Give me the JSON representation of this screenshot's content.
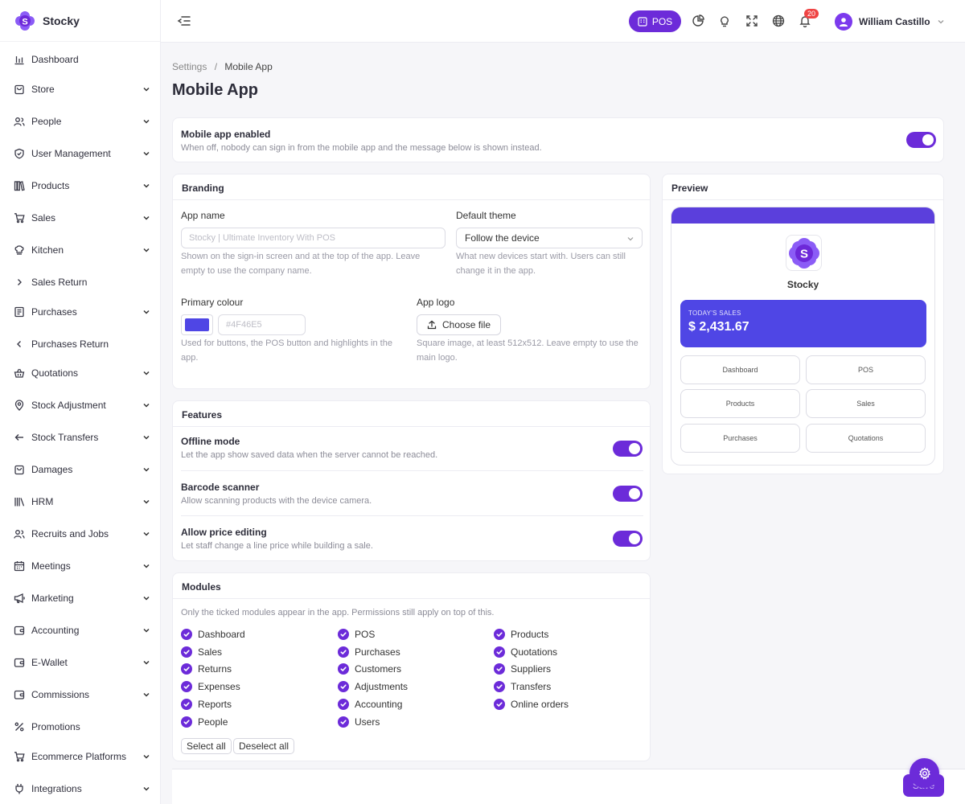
{
  "brand": {
    "name": "Stocky",
    "logo_letter": "S"
  },
  "sidebar": {
    "items": [
      {
        "label": "Dashboard",
        "icon": "bar-chart-icon",
        "chevron": ""
      },
      {
        "label": "Store",
        "icon": "bag-icon",
        "chevron": "down"
      },
      {
        "label": "People",
        "icon": "users-icon",
        "chevron": "down"
      },
      {
        "label": "User Management",
        "icon": "shield-icon",
        "chevron": "down"
      },
      {
        "label": "Products",
        "icon": "books-icon",
        "chevron": "down"
      },
      {
        "label": "Sales",
        "icon": "cart-icon",
        "chevron": "down"
      },
      {
        "label": "Kitchen",
        "icon": "chef-hat-icon",
        "chevron": "down"
      },
      {
        "label": "Sales Return",
        "icon": "chevron-right-icon",
        "chevron": ""
      },
      {
        "label": "Purchases",
        "icon": "receipt-icon",
        "chevron": "down"
      },
      {
        "label": "Purchases Return",
        "icon": "chevron-left-icon",
        "chevron": ""
      },
      {
        "label": "Quotations",
        "icon": "basket-icon",
        "chevron": "down"
      },
      {
        "label": "Stock Adjustment",
        "icon": "map-pin-icon",
        "chevron": "down"
      },
      {
        "label": "Stock Transfers",
        "icon": "arrow-left-icon",
        "chevron": "down"
      },
      {
        "label": "Damages",
        "icon": "bag-icon",
        "chevron": "down"
      },
      {
        "label": "HRM",
        "icon": "library-icon",
        "chevron": "down"
      },
      {
        "label": "Recruits and Jobs",
        "icon": "users-icon",
        "chevron": "down"
      },
      {
        "label": "Meetings",
        "icon": "calendar-icon",
        "chevron": "down"
      },
      {
        "label": "Marketing",
        "icon": "megaphone-icon",
        "chevron": "down"
      },
      {
        "label": "Accounting",
        "icon": "wallet-icon",
        "chevron": "down"
      },
      {
        "label": "E-Wallet",
        "icon": "wallet-icon",
        "chevron": "down"
      },
      {
        "label": "Commissions",
        "icon": "wallet-icon",
        "chevron": "down"
      },
      {
        "label": "Promotions",
        "icon": "percent-icon",
        "chevron": ""
      },
      {
        "label": "Ecommerce Platforms",
        "icon": "cart-icon",
        "chevron": "down"
      },
      {
        "label": "Integrations",
        "icon": "plug-icon",
        "chevron": "down"
      }
    ]
  },
  "topbar": {
    "pos_label": "POS",
    "notification_count": "20",
    "user_name": "William Castillo"
  },
  "breadcrumb": {
    "parent": "Settings",
    "separator": "/",
    "current": "Mobile App"
  },
  "page_title": "Mobile App",
  "enable_card": {
    "title": "Mobile app enabled",
    "description": "When off, nobody can sign in from the mobile app and the message below is shown instead.",
    "enabled": true
  },
  "branding": {
    "title": "Branding",
    "app_name_label": "App name",
    "app_name_value": "",
    "app_name_placeholder": "Stocky | Ultimate Inventory With POS",
    "app_name_help": "Shown on the sign-in screen and at the top of the app. Leave empty to use the company name.",
    "theme_label": "Default theme",
    "theme_value": "Follow the device",
    "theme_help": "What new devices start with. Users can still change it in the app.",
    "colour_label": "Primary colour",
    "colour_value": "#4F46E5",
    "colour_text_placeholder": "#4F46E5",
    "colour_help": "Used for buttons, the POS button and highlights in the app.",
    "logo_label": "App logo",
    "logo_button": "Choose file",
    "logo_help": "Square image, at least 512x512. Leave empty to use the main logo."
  },
  "features": {
    "title": "Features",
    "items": [
      {
        "title": "Offline mode",
        "description": "Let the app show saved data when the server cannot be reached.",
        "enabled": true
      },
      {
        "title": "Barcode scanner",
        "description": "Allow scanning products with the device camera.",
        "enabled": true
      },
      {
        "title": "Allow price editing",
        "description": "Let staff change a line price while building a sale.",
        "enabled": true
      }
    ]
  },
  "modules": {
    "title": "Modules",
    "help": "Only the ticked modules appear in the app. Permissions still apply on top of this.",
    "columns": [
      [
        "Dashboard",
        "Sales",
        "Returns",
        "Expenses",
        "Reports",
        "People"
      ],
      [
        "POS",
        "Purchases",
        "Customers",
        "Adjustments",
        "Accounting",
        "Users"
      ],
      [
        "Products",
        "Quotations",
        "Suppliers",
        "Transfers",
        "Online orders"
      ]
    ],
    "select_all": "Select all",
    "deselect_all": "Deselect all"
  },
  "preview": {
    "title": "Preview",
    "app_name": "Stocky",
    "logo_letter": "S",
    "sales_label": "TODAY'S SALES",
    "sales_value": "$ 2,431.67",
    "tiles": [
      "Dashboard",
      "POS",
      "Products",
      "Sales",
      "Purchases",
      "Quotations"
    ]
  },
  "footer": {
    "save_label": "Save"
  },
  "colors": {
    "accent": "#6C2BD9",
    "primary": "#4F46E5",
    "badge": "#EF4444"
  }
}
